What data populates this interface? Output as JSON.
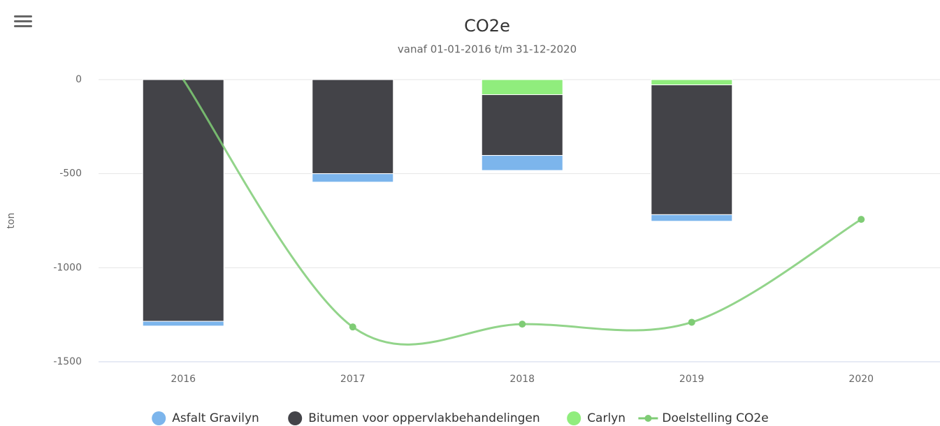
{
  "chart_data": {
    "type": "bar",
    "stacked": true,
    "title": "CO2e",
    "subtitle": "vanaf 01-01-2016 t/m 31-12-2020",
    "y_label": "ton",
    "categories": [
      "2016",
      "2017",
      "2018",
      "2019",
      "2020"
    ],
    "series": [
      {
        "name": "Asfalt Gravilyn",
        "color": "#7cb5ec",
        "values": [
          -25,
          -45,
          -80,
          -35,
          0
        ]
      },
      {
        "name": "Bitumen voor oppervlakbehandelingen",
        "color": "#434348",
        "values": [
          -1285,
          -500,
          -323,
          -690,
          0
        ]
      },
      {
        "name": "Carlyn",
        "color": "#90ed7d",
        "values": [
          0,
          0,
          -80,
          -28,
          0
        ]
      },
      {
        "name": "Doelstelling CO2e",
        "color": "#7fcc75",
        "type": "line",
        "values": [
          0,
          -1315,
          -1300,
          -1290,
          -743
        ]
      }
    ],
    "stack_order": [
      2,
      1,
      0
    ],
    "ylim": [
      -1500,
      0
    ],
    "yticks": [
      0,
      -500,
      -1000,
      -1500
    ],
    "grid": true,
    "legend": "bottom"
  }
}
